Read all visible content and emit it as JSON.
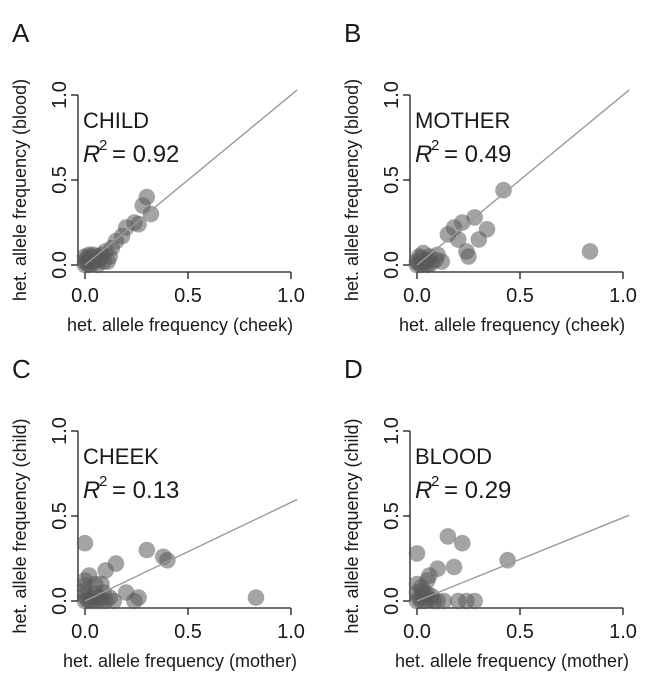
{
  "chart_data": [
    {
      "type": "scatter",
      "panel": "A",
      "label": "CHILD",
      "r2_symbol": "R",
      "r2_exp": "2",
      "r2_value": "= 0.92",
      "xlabel": "het. allele frequency (cheek)",
      "ylabel": "het. allele frequency (blood)",
      "xlim": [
        0,
        1
      ],
      "ylim": [
        0,
        1
      ],
      "xticks": [
        "0.0",
        "0.5",
        "1.0"
      ],
      "yticks": [
        "0.0",
        "0.5",
        "1.0"
      ],
      "fit": {
        "slope": 1.0,
        "intercept": 0.0,
        "x_end": 1.03
      },
      "points": [
        [
          0.0,
          0.0
        ],
        [
          0.01,
          0.01
        ],
        [
          0.02,
          0.0
        ],
        [
          0.0,
          0.02
        ],
        [
          0.03,
          0.02
        ],
        [
          0.02,
          0.03
        ],
        [
          0.04,
          0.01
        ],
        [
          0.01,
          0.04
        ],
        [
          0.05,
          0.03
        ],
        [
          0.03,
          0.05
        ],
        [
          0.06,
          0.05
        ],
        [
          0.07,
          0.03
        ],
        [
          0.04,
          0.06
        ],
        [
          0.08,
          0.06
        ],
        [
          0.09,
          0.02
        ],
        [
          0.1,
          0.08
        ],
        [
          0.12,
          0.05
        ],
        [
          0.06,
          0.0
        ],
        [
          0.0,
          0.05
        ],
        [
          0.13,
          0.1
        ],
        [
          0.15,
          0.14
        ],
        [
          0.18,
          0.17
        ],
        [
          0.2,
          0.22
        ],
        [
          0.24,
          0.25
        ],
        [
          0.26,
          0.24
        ],
        [
          0.28,
          0.35
        ],
        [
          0.3,
          0.4
        ],
        [
          0.32,
          0.3
        ],
        [
          0.02,
          0.06
        ],
        [
          0.11,
          0.02
        ]
      ]
    },
    {
      "type": "scatter",
      "panel": "B",
      "label": "MOTHER",
      "r2_symbol": "R",
      "r2_exp": "2",
      "r2_value": "= 0.49",
      "xlabel": "het. allele frequency (cheek)",
      "ylabel": "het. allele frequency (blood)",
      "xlim": [
        0,
        1
      ],
      "ylim": [
        0,
        1
      ],
      "xticks": [
        "0.0",
        "0.5",
        "1.0"
      ],
      "yticks": [
        "0.0",
        "0.5",
        "1.0"
      ],
      "fit": {
        "slope": 1.0,
        "intercept": 0.0,
        "x_end": 1.03
      },
      "points": [
        [
          0.0,
          0.0
        ],
        [
          0.01,
          0.01
        ],
        [
          0.02,
          0.0
        ],
        [
          0.0,
          0.02
        ],
        [
          0.03,
          0.02
        ],
        [
          0.02,
          0.04
        ],
        [
          0.04,
          0.01
        ],
        [
          0.01,
          0.05
        ],
        [
          0.05,
          0.03
        ],
        [
          0.06,
          0.05
        ],
        [
          0.07,
          0.01
        ],
        [
          0.09,
          0.03
        ],
        [
          0.1,
          0.06
        ],
        [
          0.12,
          0.02
        ],
        [
          0.15,
          0.18
        ],
        [
          0.18,
          0.22
        ],
        [
          0.2,
          0.15
        ],
        [
          0.22,
          0.25
        ],
        [
          0.24,
          0.08
        ],
        [
          0.25,
          0.05
        ],
        [
          0.28,
          0.28
        ],
        [
          0.3,
          0.15
        ],
        [
          0.34,
          0.21
        ],
        [
          0.42,
          0.44
        ],
        [
          0.84,
          0.08
        ],
        [
          0.03,
          0.07
        ],
        [
          0.05,
          0.0
        ]
      ]
    },
    {
      "type": "scatter",
      "panel": "C",
      "label": "CHEEK",
      "r2_symbol": "R",
      "r2_exp": "2",
      "r2_value": "= 0.13",
      "xlabel": "het. allele frequency (mother)",
      "ylabel": "het. allele frequency (child)",
      "xlim": [
        0,
        1
      ],
      "ylim": [
        0,
        1
      ],
      "xticks": [
        "0.0",
        "0.5",
        "1.0"
      ],
      "yticks": [
        "0.0",
        "0.5",
        "1.0"
      ],
      "fit": {
        "slope": 0.58,
        "intercept": 0.0,
        "x_end": 1.03
      },
      "points": [
        [
          0.0,
          0.0
        ],
        [
          0.0,
          0.03
        ],
        [
          0.0,
          0.06
        ],
        [
          0.0,
          0.09
        ],
        [
          0.0,
          0.12
        ],
        [
          0.01,
          0.01
        ],
        [
          0.02,
          0.0
        ],
        [
          0.03,
          0.02
        ],
        [
          0.04,
          0.0
        ],
        [
          0.05,
          0.04
        ],
        [
          0.06,
          0.0
        ],
        [
          0.07,
          0.02
        ],
        [
          0.08,
          0.0
        ],
        [
          0.09,
          0.05
        ],
        [
          0.1,
          0.18
        ],
        [
          0.1,
          0.0
        ],
        [
          0.12,
          0.02
        ],
        [
          0.14,
          0.0
        ],
        [
          0.08,
          0.1
        ],
        [
          0.05,
          0.1
        ],
        [
          0.0,
          0.34
        ],
        [
          0.2,
          0.05
        ],
        [
          0.24,
          0.0
        ],
        [
          0.26,
          0.02
        ],
        [
          0.3,
          0.3
        ],
        [
          0.38,
          0.26
        ],
        [
          0.4,
          0.24
        ],
        [
          0.83,
          0.02
        ],
        [
          0.15,
          0.22
        ],
        [
          0.02,
          0.15
        ]
      ]
    },
    {
      "type": "scatter",
      "panel": "D",
      "label": "BLOOD",
      "r2_symbol": "R",
      "r2_exp": "2",
      "r2_value": "= 0.29",
      "xlabel": "het. allele frequency (mother)",
      "ylabel": "het. allele frequency (child)",
      "xlim": [
        0,
        1
      ],
      "ylim": [
        0,
        1
      ],
      "xticks": [
        "0.0",
        "0.5",
        "1.0"
      ],
      "yticks": [
        "0.0",
        "0.5",
        "1.0"
      ],
      "fit": {
        "slope": 0.49,
        "intercept": 0.0,
        "x_end": 1.03
      },
      "points": [
        [
          0.0,
          0.0
        ],
        [
          0.01,
          0.02
        ],
        [
          0.02,
          0.0
        ],
        [
          0.0,
          0.05
        ],
        [
          0.03,
          0.03
        ],
        [
          0.04,
          0.0
        ],
        [
          0.05,
          0.04
        ],
        [
          0.06,
          0.01
        ],
        [
          0.07,
          0.03
        ],
        [
          0.08,
          0.0
        ],
        [
          0.0,
          0.1
        ],
        [
          0.02,
          0.08
        ],
        [
          0.05,
          0.12
        ],
        [
          0.0,
          0.28
        ],
        [
          0.1,
          0.19
        ],
        [
          0.1,
          0.0
        ],
        [
          0.13,
          0.0
        ],
        [
          0.15,
          0.38
        ],
        [
          0.18,
          0.2
        ],
        [
          0.2,
          0.0
        ],
        [
          0.22,
          0.34
        ],
        [
          0.24,
          0.0
        ],
        [
          0.28,
          0.0
        ],
        [
          0.44,
          0.24
        ],
        [
          0.03,
          0.06
        ],
        [
          0.06,
          0.15
        ]
      ]
    }
  ]
}
